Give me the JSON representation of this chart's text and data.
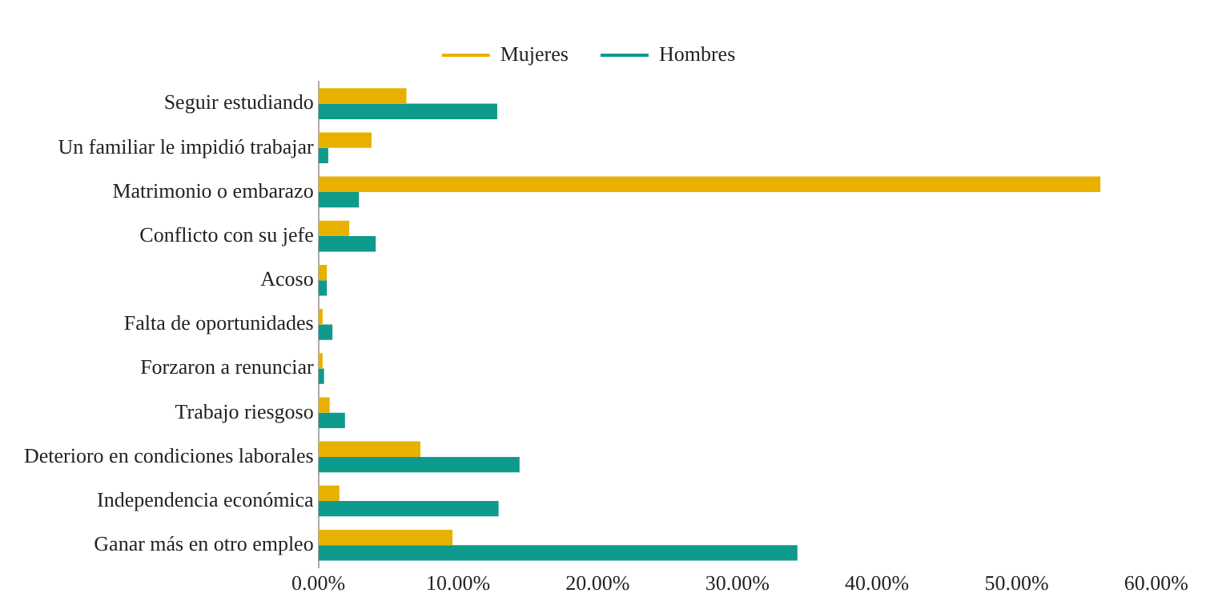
{
  "chart_data": {
    "type": "bar",
    "orientation": "horizontal",
    "categories": [
      "Seguir estudiando",
      "Un familiar le impidió trabajar",
      "Matrimonio o embarazo",
      "Conflicto con su jefe",
      "Acoso",
      "Falta de oportunidades",
      "Forzaron a renunciar",
      "Trabajo riesgoso",
      "Deterioro en condiciones laborales",
      "Independencia económica",
      "Ganar más en otro empleo"
    ],
    "series": [
      {
        "name": "Mujeres",
        "color": "#e8b100",
        "values": [
          6.3,
          3.8,
          56.0,
          2.2,
          0.6,
          0.3,
          0.3,
          0.8,
          7.3,
          1.5,
          9.6
        ]
      },
      {
        "name": "Hombres",
        "color": "#0e9a8c",
        "values": [
          12.8,
          0.7,
          2.9,
          4.1,
          0.6,
          1.0,
          0.4,
          1.9,
          14.4,
          12.9,
          34.3
        ]
      }
    ],
    "xlim": [
      0,
      60
    ],
    "xticks": [
      {
        "value": 0,
        "label": "0.00%"
      },
      {
        "value": 10,
        "label": "10.00%"
      },
      {
        "value": 20,
        "label": "20.00%"
      },
      {
        "value": 30,
        "label": "30.00%"
      },
      {
        "value": 40,
        "label": "40.00%"
      },
      {
        "value": 50,
        "label": "50.00%"
      },
      {
        "value": 60,
        "label": "60.00%"
      }
    ],
    "grid": false,
    "legend": "top"
  }
}
